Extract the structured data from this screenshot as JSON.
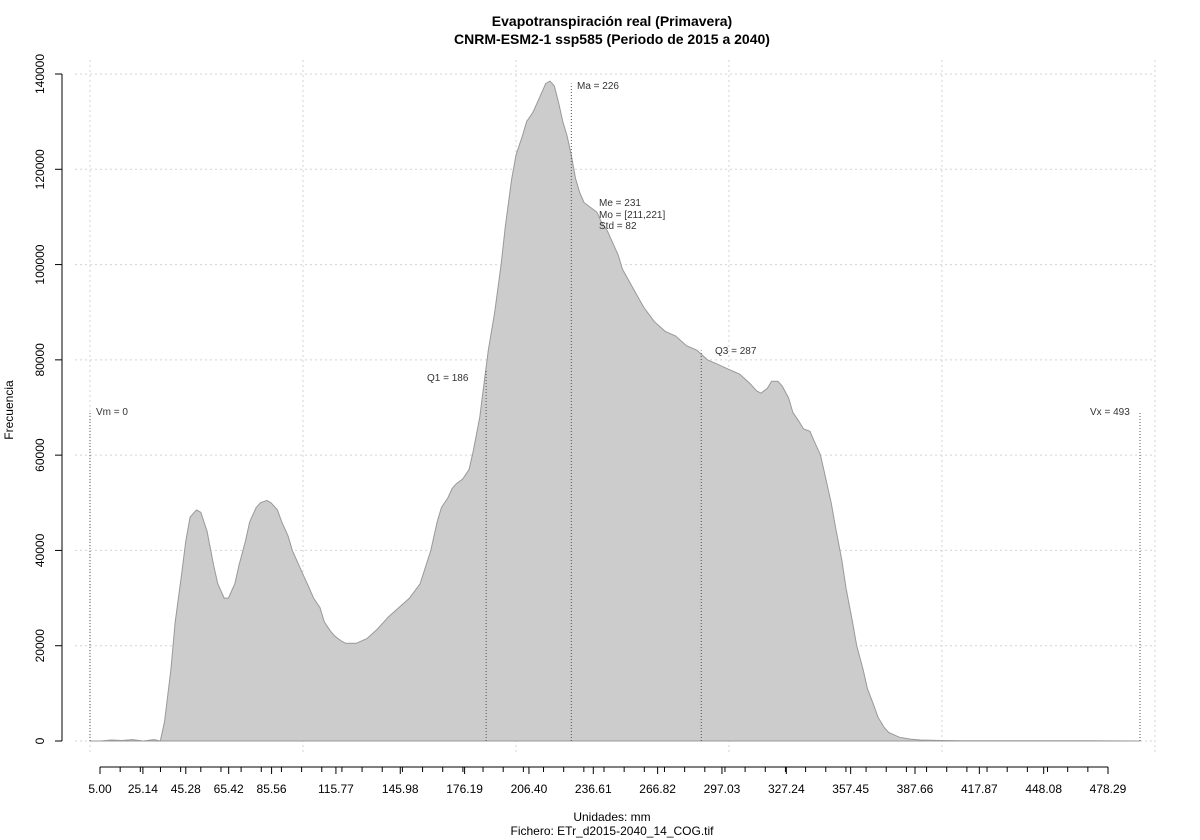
{
  "chart_data": {
    "type": "area",
    "title": "Evapotranspiración real (Primavera)",
    "subtitle": "CNRM-ESM2-1 ssp585 (Periodo de 2015 a 2040)",
    "xlabel": "Unidades: mm",
    "ylabel": "Frecuencia",
    "footer": "Fichero: ETr_d2015-2040_14_COG.tif",
    "xlim": [
      -5,
      505
    ],
    "ylim": [
      0,
      140000
    ],
    "y_ticks": [
      0,
      20000,
      40000,
      60000,
      80000,
      100000,
      120000,
      140000
    ],
    "y_tick_labels": [
      "0",
      "20000",
      "40000",
      "60000",
      "80000",
      "100000",
      "120000",
      "140000"
    ],
    "x_ticks": [
      5.0,
      25.14,
      45.28,
      65.42,
      85.56,
      115.77,
      145.98,
      176.19,
      206.4,
      236.61,
      266.82,
      297.03,
      327.24,
      357.45,
      387.66,
      417.87,
      448.08,
      478.29
    ],
    "x_tick_labels": [
      "5.00",
      "25.14",
      "45.28",
      "65.42",
      "85.56",
      "115.77",
      "145.98",
      "176.19",
      "206.40",
      "236.61",
      "266.82",
      "297.03",
      "327.24",
      "357.45",
      "387.66",
      "417.87",
      "448.08",
      "478.29"
    ],
    "grid": true,
    "fill_color": "#cccccc",
    "line_color": "#999999",
    "series": [
      {
        "x": [
          0,
          5,
          10,
          15,
          20,
          25,
          30,
          33,
          35,
          38,
          40,
          43,
          45,
          47,
          50,
          52,
          55,
          58,
          60,
          63,
          65,
          68,
          70,
          73,
          75,
          78,
          80,
          83,
          85,
          88,
          90,
          93,
          95,
          98,
          100,
          103,
          105,
          108,
          110,
          113,
          115,
          118,
          120,
          123,
          125,
          130,
          135,
          140,
          145,
          150,
          155,
          160,
          163,
          165,
          168,
          170,
          172,
          175,
          178,
          180,
          183,
          185,
          187,
          190,
          193,
          195,
          198,
          200,
          203,
          205,
          208,
          210,
          212,
          214,
          216,
          218,
          220,
          222,
          224,
          226,
          228,
          230,
          232,
          235,
          238,
          240,
          243,
          245,
          248,
          250,
          255,
          260,
          265,
          270,
          275,
          280,
          285,
          290,
          295,
          300,
          305,
          310,
          313,
          315,
          318,
          320,
          323,
          325,
          328,
          330,
          333,
          335,
          338,
          340,
          343,
          345,
          348,
          350,
          353,
          355,
          358,
          360,
          363,
          365,
          368,
          370,
          373,
          375,
          378,
          380,
          385,
          390,
          400,
          410,
          430,
          450,
          470,
          493
        ],
        "y": [
          0,
          0,
          200,
          100,
          300,
          0,
          300,
          0,
          4000,
          15000,
          25000,
          35000,
          42000,
          47000,
          48500,
          48000,
          44000,
          37000,
          33000,
          30000,
          30000,
          33000,
          37000,
          42000,
          46000,
          49000,
          50000,
          50500,
          50000,
          48500,
          46000,
          43000,
          40000,
          37000,
          35000,
          32000,
          30000,
          28000,
          25000,
          23000,
          22000,
          21000,
          20500,
          20500,
          20500,
          21500,
          23500,
          26000,
          28000,
          30000,
          33000,
          40000,
          46000,
          49000,
          51000,
          53000,
          54000,
          55000,
          57000,
          61000,
          68000,
          75000,
          82000,
          90000,
          100000,
          108000,
          118000,
          123000,
          127000,
          130000,
          132000,
          134000,
          136000,
          138000,
          138500,
          137500,
          134000,
          130000,
          127000,
          123000,
          118000,
          115000,
          113000,
          112000,
          111000,
          109000,
          107000,
          105000,
          102000,
          99000,
          95000,
          91000,
          88000,
          86000,
          85000,
          83000,
          82000,
          80000,
          79000,
          78000,
          77000,
          75000,
          73500,
          73000,
          74000,
          75500,
          75500,
          74500,
          72000,
          69000,
          67000,
          65500,
          65000,
          63000,
          60000,
          56000,
          50000,
          45000,
          38000,
          32000,
          25000,
          20000,
          15000,
          11000,
          7500,
          5000,
          2800,
          1800,
          1200,
          800,
          400,
          200,
          100,
          50,
          50,
          50,
          50,
          0
        ]
      }
    ],
    "annotations": [
      {
        "label": "Vm = 0",
        "x": 0
      },
      {
        "label": "Q1 = 186",
        "x": 186
      },
      {
        "label": "Ma = 226",
        "x": 226
      },
      {
        "label": "Q3 = 287",
        "x": 287
      },
      {
        "label": "Vx = 493",
        "x": 493
      },
      {
        "label": "Me = 231"
      },
      {
        "label": "Mo = [211,221]"
      },
      {
        "label": "Std = 82"
      }
    ]
  }
}
